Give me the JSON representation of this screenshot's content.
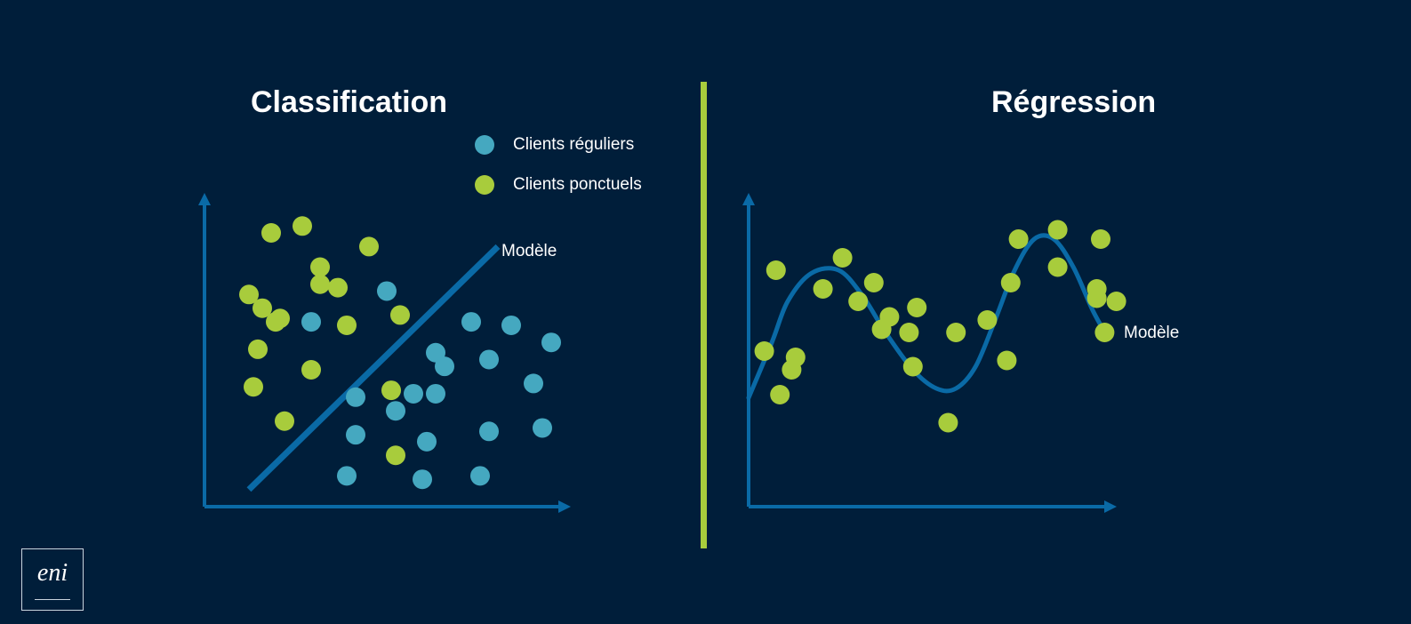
{
  "colors": {
    "background": "#001e3a",
    "axis": "#0a6aa6",
    "model_line": "#0a6aa6",
    "regular": "#45a8c0",
    "occasional": "#a8cc3c",
    "divider": "#a8cc3c"
  },
  "classification": {
    "title": "Classification",
    "model_label": "Modèle",
    "legend": [
      {
        "label": "Clients réguliers",
        "series": "regular"
      },
      {
        "label": "Clients ponctuels",
        "series": "occasional"
      }
    ],
    "model_line": {
      "x1": 1,
      "y1": 0.5,
      "x2": 6.6,
      "y2": 7.6
    },
    "points_regular": [
      [
        4.1,
        6.3
      ],
      [
        2.4,
        5.4
      ],
      [
        6.0,
        5.4
      ],
      [
        6.9,
        5.3
      ],
      [
        7.8,
        4.8
      ],
      [
        5.2,
        4.5
      ],
      [
        6.4,
        4.3
      ],
      [
        5.4,
        4.1
      ],
      [
        7.4,
        3.6
      ],
      [
        3.4,
        3.2
      ],
      [
        4.7,
        3.3
      ],
      [
        5.2,
        3.3
      ],
      [
        4.3,
        2.8
      ],
      [
        3.4,
        2.1
      ],
      [
        5.0,
        1.9
      ],
      [
        6.4,
        2.2
      ],
      [
        7.6,
        2.3
      ],
      [
        3.2,
        0.9
      ],
      [
        4.9,
        0.8
      ],
      [
        6.2,
        0.9
      ]
    ],
    "points_occasional": [
      [
        1.5,
        8.0
      ],
      [
        2.2,
        8.2
      ],
      [
        3.7,
        7.6
      ],
      [
        2.6,
        7.0
      ],
      [
        3.0,
        6.4
      ],
      [
        1.0,
        6.2
      ],
      [
        1.3,
        5.8
      ],
      [
        2.6,
        6.5
      ],
      [
        1.6,
        5.4
      ],
      [
        1.7,
        5.5
      ],
      [
        3.2,
        5.3
      ],
      [
        4.4,
        5.6
      ],
      [
        1.2,
        4.6
      ],
      [
        2.4,
        4.0
      ],
      [
        1.1,
        3.5
      ],
      [
        1.8,
        2.5
      ],
      [
        4.2,
        3.4
      ],
      [
        4.3,
        1.5
      ]
    ]
  },
  "regression": {
    "title": "Régression",
    "model_label": "Modèle",
    "curve": [
      [
        0.0,
        3.5
      ],
      [
        0.6,
        5.3
      ],
      [
        1.0,
        6.6
      ],
      [
        1.6,
        7.5
      ],
      [
        2.3,
        7.6
      ],
      [
        2.9,
        6.8
      ],
      [
        3.5,
        5.6
      ],
      [
        4.2,
        4.4
      ],
      [
        4.8,
        3.8
      ],
      [
        5.3,
        3.8
      ],
      [
        5.8,
        4.5
      ],
      [
        6.3,
        6.0
      ],
      [
        6.8,
        7.6
      ],
      [
        7.3,
        8.6
      ],
      [
        7.8,
        8.6
      ],
      [
        8.3,
        7.7
      ],
      [
        8.8,
        6.3
      ],
      [
        9.2,
        5.4
      ]
    ],
    "points": [
      [
        0.4,
        5.0
      ],
      [
        0.7,
        7.6
      ],
      [
        1.1,
        4.4
      ],
      [
        1.2,
        4.8
      ],
      [
        1.9,
        7.0
      ],
      [
        2.4,
        8.0
      ],
      [
        2.8,
        6.6
      ],
      [
        3.2,
        7.2
      ],
      [
        3.4,
        5.7
      ],
      [
        3.6,
        6.1
      ],
      [
        4.1,
        5.6
      ],
      [
        4.2,
        4.5
      ],
      [
        4.3,
        6.4
      ],
      [
        5.1,
        2.7
      ],
      [
        5.3,
        5.6
      ],
      [
        6.1,
        6.0
      ],
      [
        6.6,
        4.7
      ],
      [
        6.7,
        7.2
      ],
      [
        6.9,
        8.6
      ],
      [
        7.9,
        8.9
      ],
      [
        7.9,
        7.7
      ],
      [
        9.0,
        8.6
      ],
      [
        8.9,
        7.0
      ],
      [
        8.9,
        6.7
      ],
      [
        9.1,
        5.6
      ],
      [
        9.4,
        6.6
      ],
      [
        0.8,
        3.6
      ]
    ]
  }
}
